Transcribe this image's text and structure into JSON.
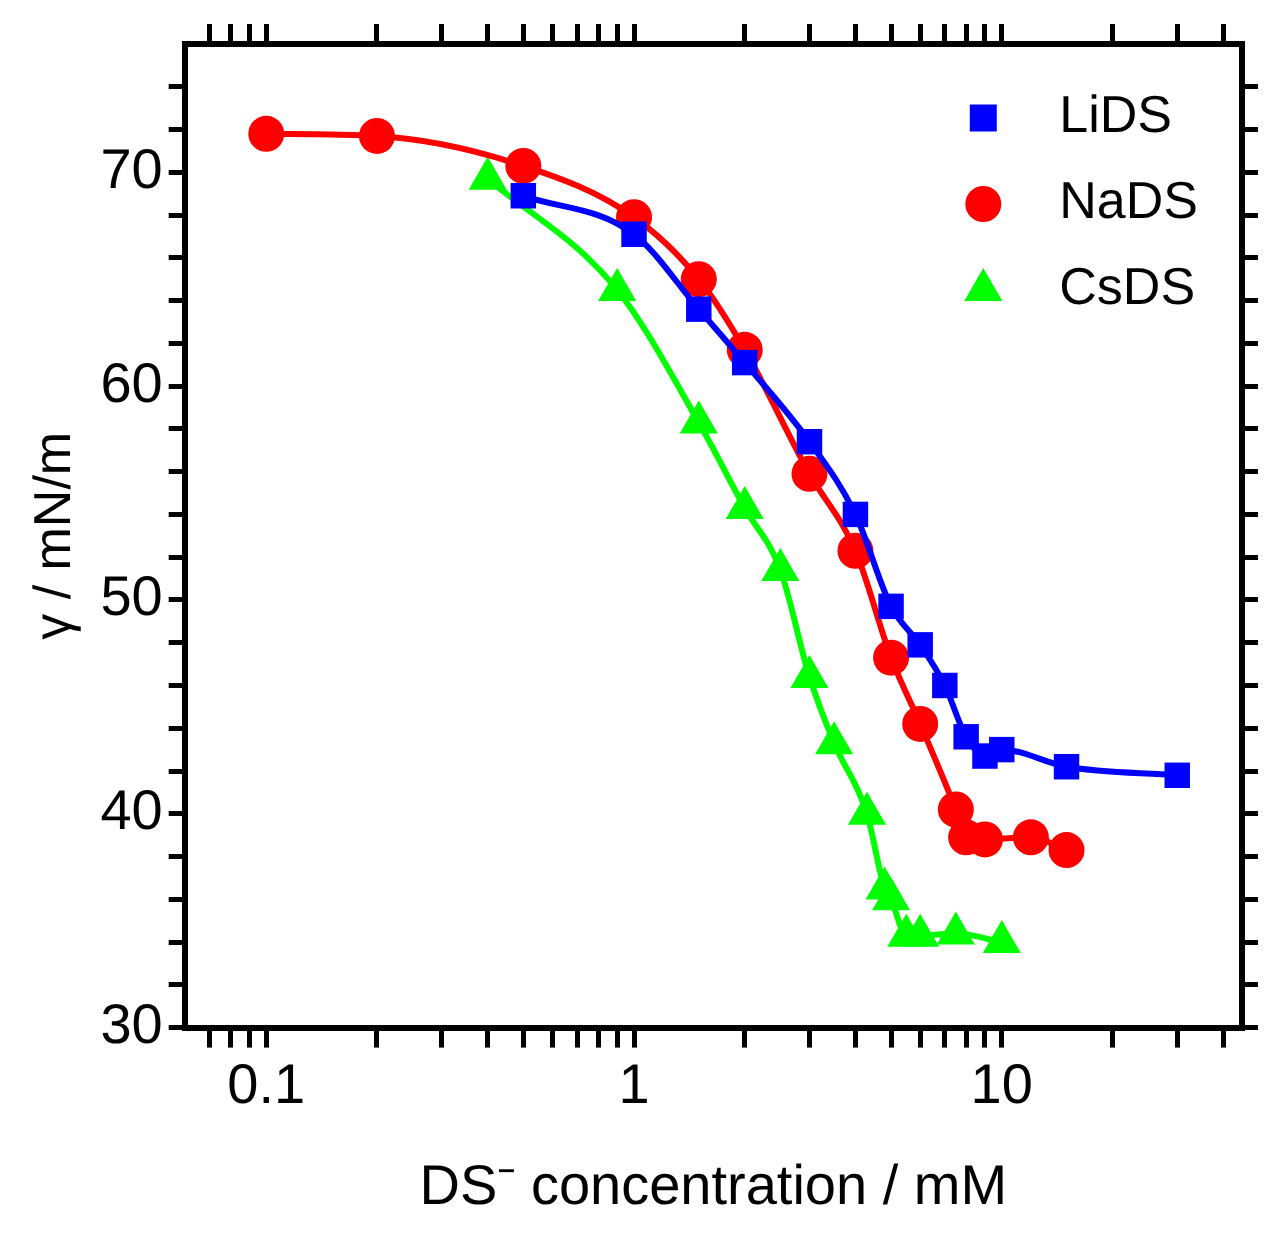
{
  "chart_data": {
    "type": "line",
    "xlabel": "DS⁻ concentration / mM",
    "ylabel": "γ / mN/m",
    "log": "x",
    "xlim": [
      0.06,
      45
    ],
    "xticks": [
      {
        "value": 0.07,
        "label": null
      },
      {
        "value": 0.08,
        "label": null
      },
      {
        "value": 0.09,
        "label": null
      },
      0.1,
      {
        "value": 0.2,
        "label": null
      },
      {
        "value": 0.3,
        "label": null
      },
      {
        "value": 0.4,
        "label": null
      },
      {
        "value": 0.5,
        "label": null
      },
      {
        "value": 0.6,
        "label": null
      },
      {
        "value": 0.7,
        "label": null
      },
      {
        "value": 0.8,
        "label": null
      },
      {
        "value": 0.9,
        "label": null
      },
      1,
      {
        "value": 2,
        "label": null
      },
      {
        "value": 3,
        "label": null
      },
      {
        "value": 4,
        "label": null
      },
      {
        "value": 5,
        "label": null
      },
      {
        "value": 6,
        "label": null
      },
      {
        "value": 7,
        "label": null
      },
      {
        "value": 8,
        "label": null
      },
      {
        "value": 9,
        "label": null
      },
      10,
      {
        "value": 20,
        "label": null
      },
      {
        "value": 30,
        "label": null
      },
      {
        "value": 40,
        "label": null
      }
    ],
    "ylim": [
      30,
      76
    ],
    "yticks": [
      30,
      {
        "value": 32,
        "label": null
      },
      {
        "value": 34,
        "label": null
      },
      {
        "value": 36,
        "label": null
      },
      {
        "value": 38,
        "label": null
      },
      40,
      {
        "value": 42,
        "label": null
      },
      {
        "value": 44,
        "label": null
      },
      {
        "value": 46,
        "label": null
      },
      {
        "value": 48,
        "label": null
      },
      50,
      {
        "value": 52,
        "label": null
      },
      {
        "value": 54,
        "label": null
      },
      {
        "value": 56,
        "label": null
      },
      {
        "value": 58,
        "label": null
      },
      60,
      {
        "value": 62,
        "label": null
      },
      {
        "value": 64,
        "label": null
      },
      {
        "value": 66,
        "label": null
      },
      {
        "value": 68,
        "label": null
      },
      70,
      {
        "value": 72,
        "label": null
      },
      {
        "value": 74,
        "label": null
      }
    ],
    "grid": false,
    "legend": "top right",
    "series": [
      {
        "name": "LiDS",
        "color": "#0000ff",
        "marker": "square",
        "x": [
          0.5,
          1,
          1.5,
          2,
          3,
          4,
          5,
          6,
          7,
          8,
          9,
          10,
          15,
          30
        ],
        "values": [
          68.9,
          67.1,
          63.6,
          61.1,
          57.4,
          54.0,
          49.7,
          47.9,
          46.0,
          43.6,
          42.7,
          43.0,
          42.2,
          41.8
        ]
      },
      {
        "name": "NaDS",
        "color": "#ff0000",
        "marker": "circle",
        "x": [
          0.1,
          0.2,
          0.5,
          1,
          1.5,
          2,
          3,
          4,
          5,
          6,
          7.5,
          8,
          9,
          12,
          15
        ],
        "values": [
          71.8,
          71.7,
          70.3,
          67.9,
          65.0,
          61.7,
          55.9,
          52.3,
          47.3,
          44.2,
          40.2,
          38.9,
          38.8,
          38.9,
          38.3
        ]
      },
      {
        "name": "CsDS",
        "color": "#00ff00",
        "marker": "triangle",
        "x": [
          0.4,
          0.9,
          1.5,
          2,
          2.5,
          3,
          3.5,
          4.3,
          4.8,
          5,
          5.5,
          6,
          7.5,
          10
        ],
        "values": [
          69.7,
          64.5,
          58.3,
          54.3,
          51.4,
          46.4,
          43.3,
          40.0,
          36.5,
          36.0,
          34.3,
          34.3,
          34.4,
          34.0
        ]
      }
    ]
  }
}
